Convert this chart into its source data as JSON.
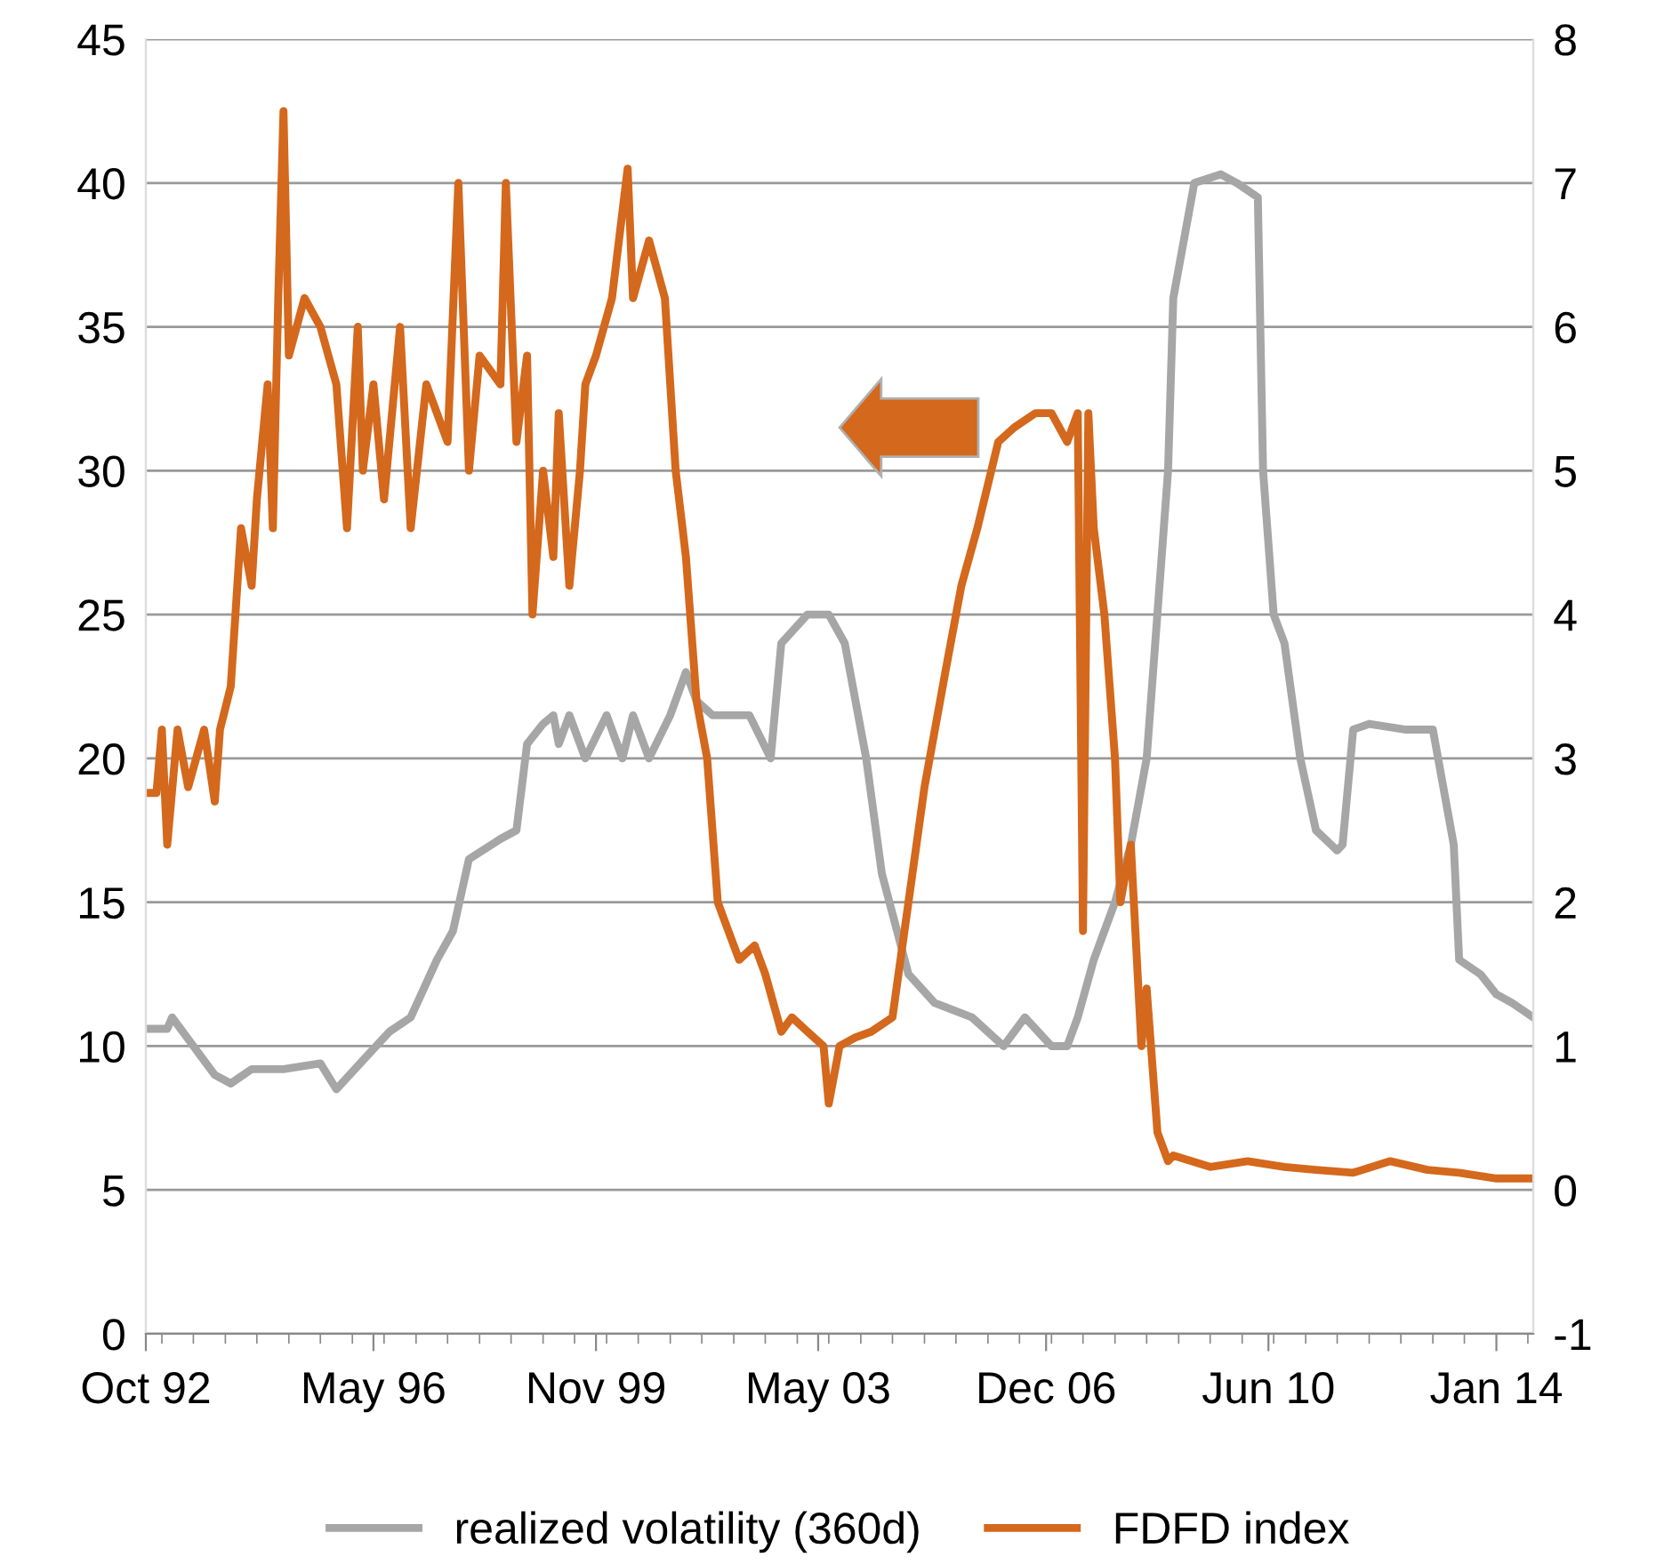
{
  "chart_data": {
    "type": "line",
    "series": [
      {
        "name": "realized volatility (360d)",
        "color": "#a6a6a6",
        "axis": "y",
        "x": [
          "1992-10",
          "1993-02",
          "1993-03",
          "1993-11",
          "1994-02",
          "1994-06",
          "1994-12",
          "1995-07",
          "1995-10",
          "1996-03",
          "1996-08",
          "1996-12",
          "1997-05",
          "1997-08",
          "1997-11",
          "1998-05",
          "1998-08",
          "1998-10",
          "1999-01",
          "1999-03",
          "1999-04",
          "1999-06",
          "1999-09",
          "2000-01",
          "2000-04",
          "2000-06",
          "2000-09",
          "2001-01",
          "2001-04",
          "2001-06",
          "2001-09",
          "2002-04",
          "2002-08",
          "2002-10",
          "2003-03",
          "2003-07",
          "2003-10",
          "2004-02",
          "2004-05",
          "2004-10",
          "2005-03",
          "2005-10",
          "2006-04",
          "2006-08",
          "2007-01",
          "2007-04",
          "2007-06",
          "2007-09",
          "2008-01",
          "2008-04",
          "2008-07",
          "2008-11",
          "2008-12",
          "2009-04",
          "2009-09",
          "2009-12",
          "2010-04",
          "2010-05",
          "2010-07",
          "2010-09",
          "2010-12",
          "2011-03",
          "2011-07",
          "2011-08",
          "2011-10",
          "2012-01",
          "2012-08",
          "2013-01",
          "2013-05",
          "2013-06",
          "2013-10",
          "2014-01",
          "2014-04",
          "2014-08"
        ],
        "values": [
          10.6,
          10.6,
          11,
          9,
          8.7,
          9.2,
          9.2,
          9.4,
          8.5,
          9.5,
          10.5,
          11,
          13,
          14,
          16.5,
          17.2,
          17.5,
          20.5,
          21.2,
          21.5,
          20.5,
          21.5,
          20,
          21.5,
          20,
          21.5,
          20,
          21.5,
          23,
          22,
          21.5,
          21.5,
          20,
          24,
          25,
          25,
          24,
          20,
          16,
          12.5,
          11.5,
          11,
          10,
          11,
          10,
          10,
          11,
          13,
          15,
          17,
          20,
          30,
          36,
          40,
          40.3,
          40,
          39.5,
          30,
          25,
          24,
          20,
          17.5,
          16.8,
          17,
          21,
          21.2,
          21,
          21,
          17,
          13,
          12.5,
          11.8,
          11.5,
          11
        ]
      },
      {
        "name": "FDFD index",
        "color": "#d4681c",
        "axis": "y2",
        "x": [
          "1992-10",
          "1992-12",
          "1993-01",
          "1993-02",
          "1993-04",
          "1993-06",
          "1993-09",
          "1993-11",
          "1993-12",
          "1994-02",
          "1994-04",
          "1994-06",
          "1994-07",
          "1994-09",
          "1994-10",
          "1994-11",
          "1994-12",
          "1995-01",
          "1995-04",
          "1995-07",
          "1995-10",
          "1995-12",
          "1996-02",
          "1996-03",
          "1996-05",
          "1996-07",
          "1996-10",
          "1996-12",
          "1997-03",
          "1997-07",
          "1997-09",
          "1997-11",
          "1998-01",
          "1998-05",
          "1998-06",
          "1998-08",
          "1998-10",
          "1998-11",
          "1999-01",
          "1999-03",
          "1999-04",
          "1999-06",
          "1999-08",
          "1999-09",
          "1999-11",
          "2000-02",
          "2000-05",
          "2000-06",
          "2000-09",
          "2000-12",
          "2001-02",
          "2001-04",
          "2001-06",
          "2001-08",
          "2001-10",
          "2001-12",
          "2002-02",
          "2002-05",
          "2002-07",
          "2002-10",
          "2002-12",
          "2003-03",
          "2003-06",
          "2003-07",
          "2003-09",
          "2003-12",
          "2004-03",
          "2004-07",
          "2004-10",
          "2005-01",
          "2005-05",
          "2005-08",
          "2005-11",
          "2006-03",
          "2006-06",
          "2006-10",
          "2007-01",
          "2007-04",
          "2007-06",
          "2007-07",
          "2007-08",
          "2007-09",
          "2007-11",
          "2008-01",
          "2008-02",
          "2008-04",
          "2008-06",
          "2008-07",
          "2008-09",
          "2008-11",
          "2008-12",
          "2009-07",
          "2010-02",
          "2010-09",
          "2011-03",
          "2011-10",
          "2012-05",
          "2012-12",
          "2013-06",
          "2014-01",
          "2014-08"
        ],
        "values": [
          2.76,
          2.76,
          3.2,
          2.4,
          3.2,
          2.8,
          3.2,
          2.7,
          3.2,
          3.5,
          4.6,
          4.2,
          4.8,
          5.6,
          4.6,
          6.2,
          7.5,
          5.8,
          6.2,
          6.0,
          5.6,
          4.6,
          6.0,
          5.0,
          5.6,
          4.8,
          6.0,
          4.6,
          5.6,
          5.2,
          7.0,
          5.0,
          5.8,
          5.6,
          7.0,
          5.2,
          5.8,
          4.0,
          5.0,
          4.4,
          5.4,
          4.2,
          5.0,
          5.6,
          5.8,
          6.2,
          7.1,
          6.2,
          6.6,
          6.2,
          5.0,
          4.4,
          3.4,
          3.0,
          2.0,
          1.8,
          1.6,
          1.7,
          1.5,
          1.1,
          1.2,
          1.1,
          1.0,
          0.6,
          1.0,
          1.06,
          1.1,
          1.2,
          2.0,
          2.8,
          3.6,
          4.2,
          4.6,
          5.2,
          5.3,
          5.4,
          5.4,
          5.2,
          5.4,
          1.8,
          5.4,
          4.6,
          4.0,
          3.0,
          2.0,
          2.4,
          1.0,
          1.4,
          0.4,
          0.2,
          0.24,
          0.16,
          0.2,
          0.16,
          0.14,
          0.12,
          0.2,
          0.14,
          0.12,
          0.08,
          0.08
        ]
      }
    ],
    "xlim": [
      "1992-10",
      "2014-08"
    ],
    "xticks": [
      {
        "value": "1992-10",
        "label": "Oct 92"
      },
      {
        "value": "1996-05",
        "label": "May 96"
      },
      {
        "value": "1999-11",
        "label": "Nov 99"
      },
      {
        "value": "2003-05",
        "label": "May 03"
      },
      {
        "value": "2006-12",
        "label": "Dec 06"
      },
      {
        "value": "2010-06",
        "label": "Jun 10"
      },
      {
        "value": "2014-01",
        "label": "Jan 14"
      }
    ],
    "ylim": [
      0,
      45
    ],
    "yticks": [
      0,
      5,
      10,
      15,
      20,
      25,
      30,
      35,
      40,
      45
    ],
    "y2lim": [
      -1,
      8
    ],
    "y2ticks": [
      -1,
      0,
      1,
      2,
      3,
      4,
      5,
      6,
      7,
      8
    ],
    "grid": "y",
    "legend": "bottom",
    "marker": "none",
    "line_style": "solid"
  }
}
